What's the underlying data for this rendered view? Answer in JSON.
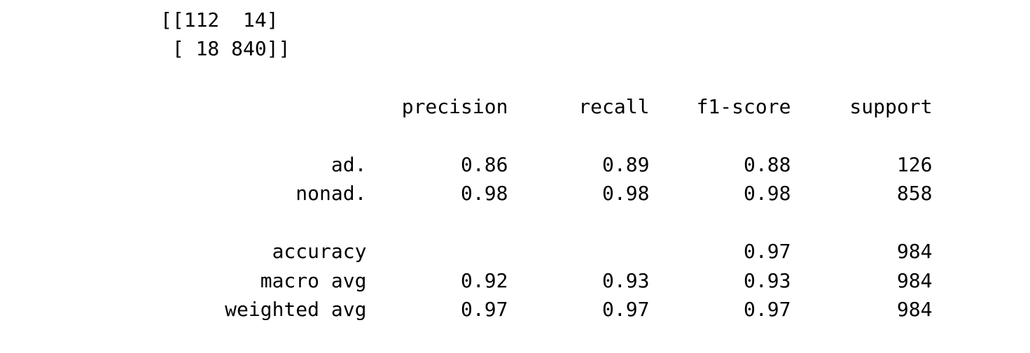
{
  "confusion_matrix": {
    "line_1": "[[112  14]",
    "line_2": " [ 18 840]]"
  },
  "report": {
    "header": [
      "precision",
      "recall",
      "f1-score",
      "support"
    ],
    "class_rows": [
      {
        "label": "ad.",
        "precision": "0.86",
        "recall": "0.89",
        "f1": "0.88",
        "support": "126"
      },
      {
        "label": "nonad.",
        "precision": "0.98",
        "recall": "0.98",
        "f1": "0.98",
        "support": "858"
      }
    ],
    "summary_rows": [
      {
        "label": "accuracy",
        "precision": "",
        "recall": "",
        "f1": "0.97",
        "support": "984"
      },
      {
        "label": "macro avg",
        "precision": "0.92",
        "recall": "0.93",
        "f1": "0.93",
        "support": "984"
      },
      {
        "label": "weighted avg",
        "precision": "0.97",
        "recall": "0.97",
        "f1": "0.97",
        "support": "984"
      }
    ]
  }
}
